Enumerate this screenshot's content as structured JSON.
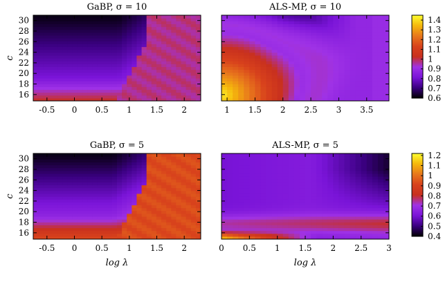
{
  "chart_data": [
    {
      "type": "heatmap",
      "title": "GaBP, σ = 10",
      "xlabel": "",
      "ylabel": "c",
      "xlim": [
        -0.75,
        2.3
      ],
      "ylim": [
        14.8,
        31.0
      ],
      "xticks": [
        "-0.5",
        "0",
        "0.5",
        "1",
        "1.5",
        "2"
      ],
      "yticks": [
        "16",
        "18",
        "20",
        "22",
        "24",
        "26",
        "28",
        "30"
      ],
      "colorbar_range": [
        0.6,
        1.45
      ],
      "colorbar_ticks": [
        "0.6",
        "0.7",
        "0.8",
        "0.9",
        "1",
        "1.1",
        "1.2",
        "1.3",
        "1.4"
      ],
      "model": "gabp",
      "params": {
        "low": 0.62,
        "top": 0.88,
        "bottom": 1.02,
        "right": 0.97,
        "cut": 1.32,
        "lx0": 0.8
      },
      "grid": {
        "x_from": -0.75,
        "x_to": 2.3,
        "nx": 34,
        "y_from": 14.8,
        "y_to": 31.0,
        "ny": 30
      }
    },
    {
      "type": "heatmap",
      "title": "ALS-MP, σ = 10",
      "xlabel": "",
      "ylabel": "",
      "xlim": [
        0.9,
        3.9
      ],
      "ylim": [
        14.8,
        31.0
      ],
      "xticks": [
        "1",
        "1.5",
        "2",
        "2.5",
        "3",
        "3.5"
      ],
      "yticks": [],
      "colorbar_range": [
        0.6,
        1.45
      ],
      "colorbar_ticks": [
        "0.6",
        "0.7",
        "0.8",
        "0.9",
        "1",
        "1.1",
        "1.2",
        "1.3",
        "1.4"
      ],
      "model": "als10",
      "grid": {
        "x_from": 0.9,
        "x_to": 3.9,
        "nx": 30,
        "y_from": 14.8,
        "y_to": 31.0,
        "ny": 30
      }
    },
    {
      "type": "heatmap",
      "title": "GaBP, σ = 5",
      "xlabel": "log λ",
      "ylabel": "c",
      "xlim": [
        -0.75,
        2.3
      ],
      "ylim": [
        14.8,
        31.0
      ],
      "xticks": [
        "-0.5",
        "0",
        "0.5",
        "1",
        "1.5",
        "2"
      ],
      "yticks": [
        "16",
        "18",
        "20",
        "22",
        "24",
        "26",
        "28",
        "30"
      ],
      "colorbar_range": [
        0.4,
        1.22
      ],
      "colorbar_ticks": [
        "0.4",
        "0.5",
        "0.6",
        "0.7",
        "0.8",
        "0.9",
        "1",
        "1.1",
        "1.2"
      ],
      "model": "gabp",
      "params": {
        "low": 0.42,
        "top": 0.74,
        "bottom": 0.92,
        "right": 0.93,
        "cut": 1.32,
        "lx0": 0.7
      },
      "grid": {
        "x_from": -0.75,
        "x_to": 2.3,
        "nx": 34,
        "y_from": 14.8,
        "y_to": 31.0,
        "ny": 30
      }
    },
    {
      "type": "heatmap",
      "title": "ALS-MP, σ = 5",
      "xlabel": "log λ",
      "ylabel": "",
      "xlim": [
        0,
        3.0
      ],
      "ylim": [
        14.8,
        31.0
      ],
      "xticks": [
        "0",
        "0.5",
        "1",
        "1.5",
        "2",
        "2.5",
        "3"
      ],
      "yticks": [],
      "colorbar_range": [
        0.4,
        1.22
      ],
      "colorbar_ticks": [
        "0.4",
        "0.5",
        "0.6",
        "0.7",
        "0.8",
        "0.9",
        "1",
        "1.1",
        "1.2"
      ],
      "model": "als5",
      "grid": {
        "x_from": 0,
        "x_to": 3.0,
        "nx": 30,
        "y_from": 14.8,
        "y_to": 31.0,
        "ny": 30
      }
    }
  ],
  "colormap": [
    "#000000",
    "#3a0080",
    "#7a14d8",
    "#9f32e6",
    "#c8301e",
    "#d8421c",
    "#e8781c",
    "#f5b80c",
    "#ffff30"
  ],
  "yticks_values": [
    16,
    18,
    20,
    22,
    24,
    26,
    28,
    30
  ]
}
